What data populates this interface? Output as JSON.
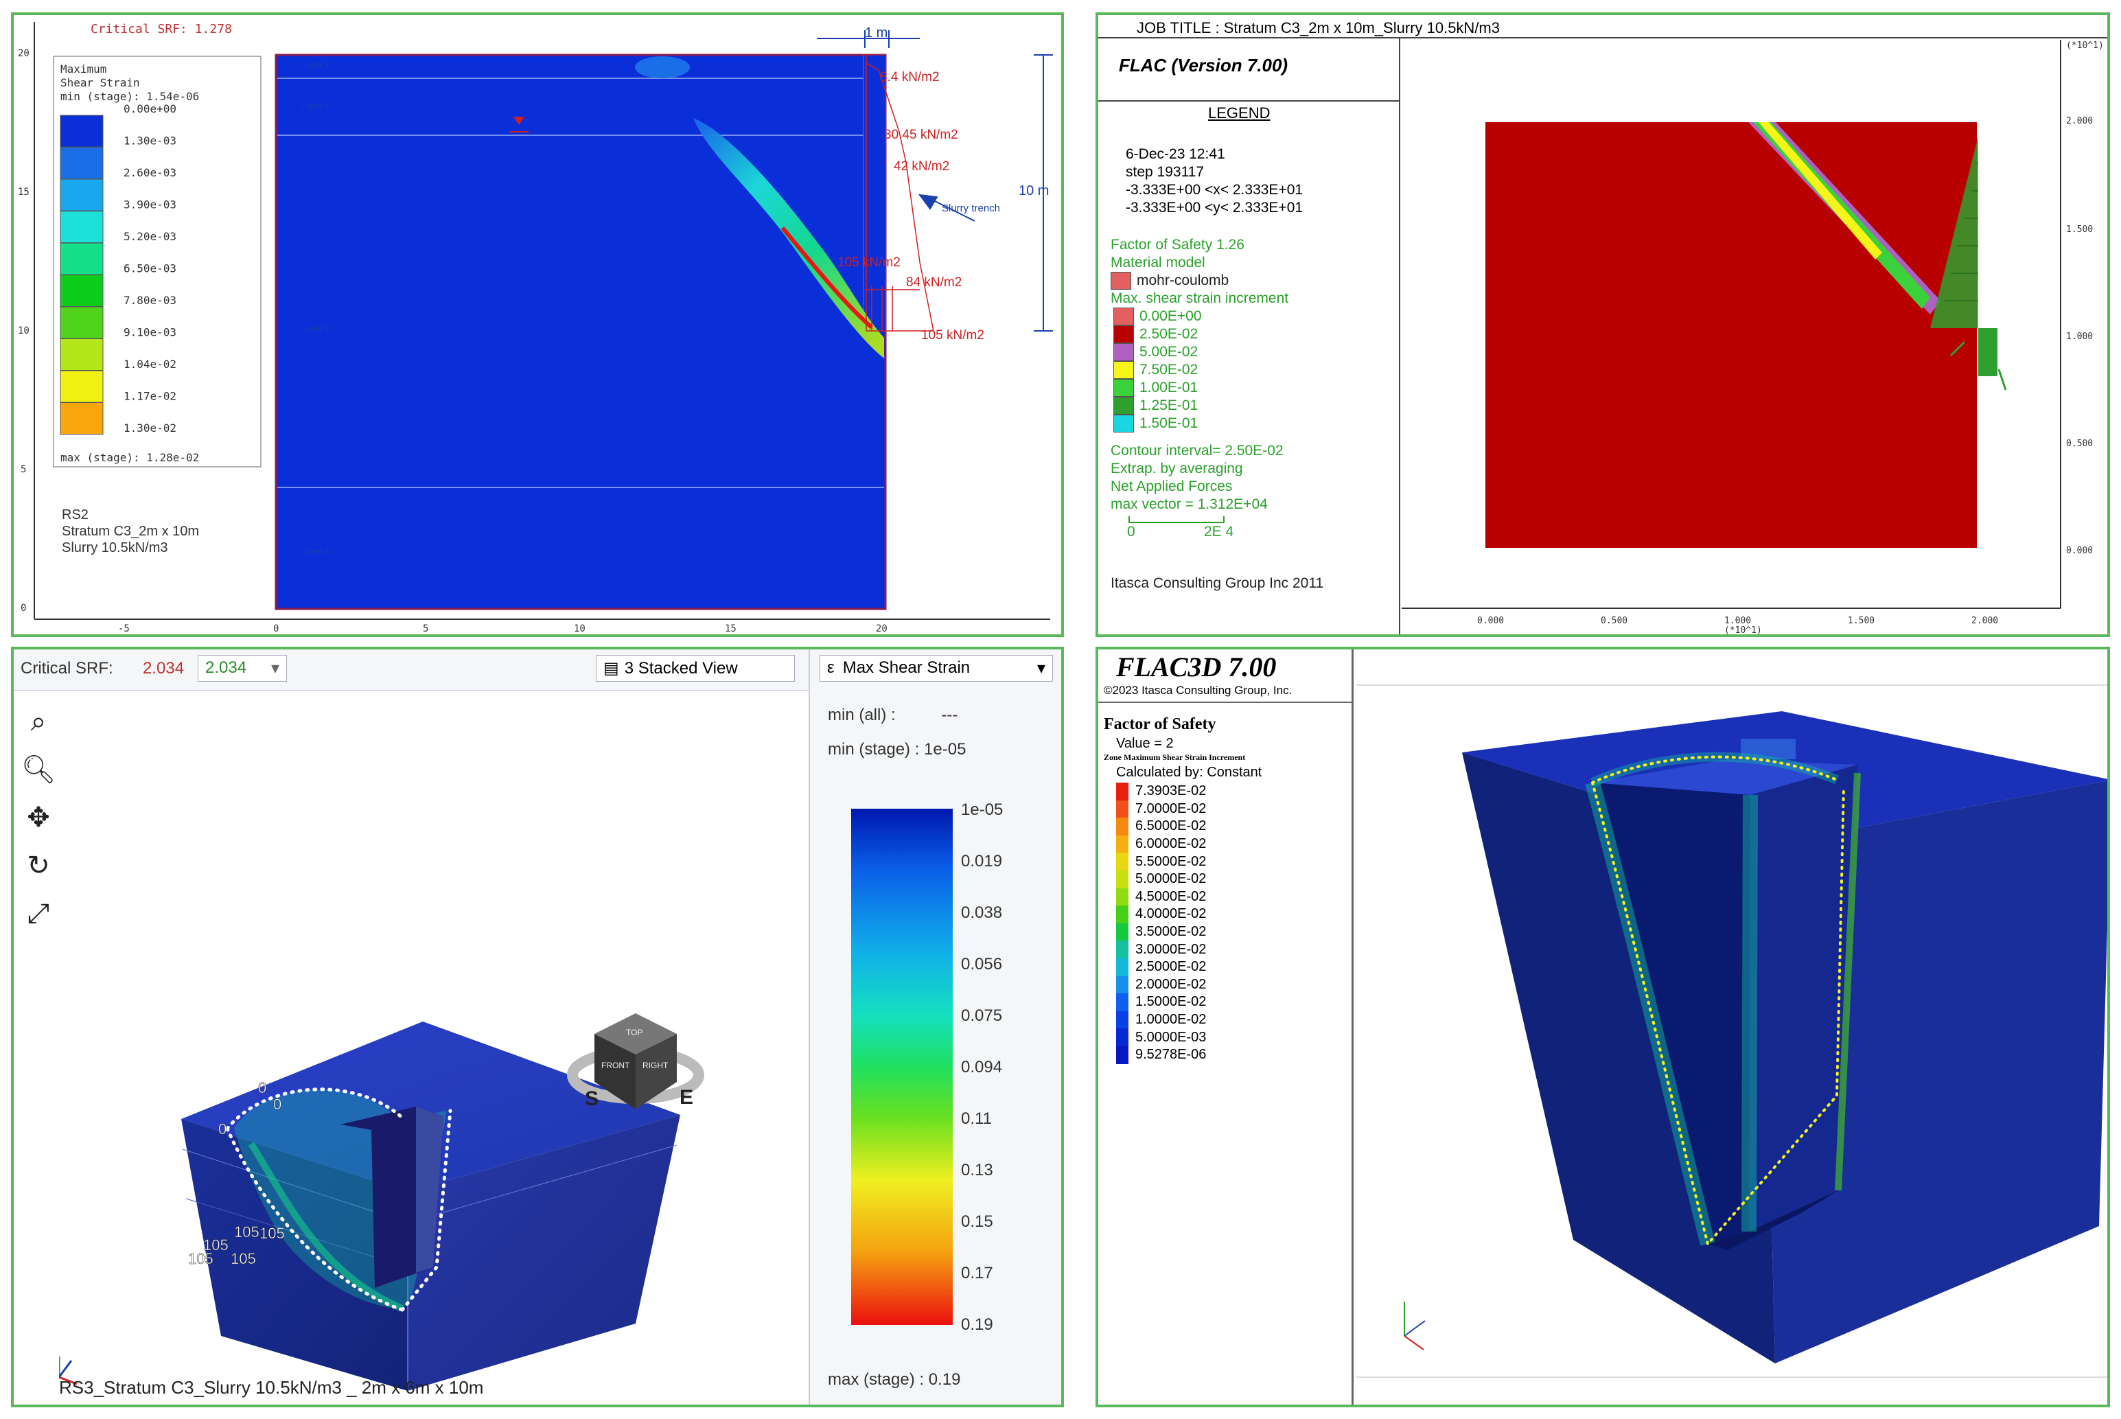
{
  "p1": {
    "critical_srf": "Critical SRF: 1.278",
    "legend_title": [
      "Maximum",
      "Shear Strain",
      "min (stage): 1.54e-06"
    ],
    "legend_values": [
      "0.00e+00",
      "1.30e-03",
      "2.60e-03",
      "3.90e-03",
      "5.20e-03",
      "6.50e-03",
      "7.80e-03",
      "9.10e-03",
      "1.04e-02",
      "1.17e-02",
      "1.30e-02"
    ],
    "legend_max": "max (stage): 1.28e-02",
    "legend_colors": [
      "#0a2fd9",
      "#1a6ee8",
      "#19a8ee",
      "#1de0d8",
      "#14e08a",
      "#0ccd1c",
      "#4fd41b",
      "#b4e61a",
      "#f2f212",
      "#f9a70c",
      "#ea1515"
    ],
    "info": [
      "RS2",
      "Stratum C3_2m x 10m",
      "Slurry 10.5kN/m3"
    ],
    "y_ticks": [
      "20",
      "15",
      "10",
      "5",
      "0"
    ],
    "x_ticks": [
      "-5",
      "0",
      "5",
      "10",
      "15",
      "20"
    ],
    "layer_labels": [
      "Layer 1",
      "Layer 2",
      "Layer 3",
      "Layer 4"
    ],
    "dim_top": "1 m",
    "dim_side": "10 m",
    "loads": [
      "8.4 kN/m2",
      "30.45 kN/m2",
      "42 kN/m2",
      "105 kN/m2",
      "84 kN/m2",
      "105 kN/m2"
    ],
    "slurry_label": "Slurry trench"
  },
  "p2": {
    "job_title": "JOB TITLE : Stratum C3_2m x 10m_Slurry 10.5kN/m3",
    "program": "FLAC (Version 7.00)",
    "legend": "LEGEND",
    "date": "6-Dec-23 12:41",
    "step": "step  193117",
    "xrange": "-3.333E+00 <x< 2.333E+01",
    "yrange": "-3.333E+00 <y< 2.333E+01",
    "fos": "Factor of Safety  1.26",
    "material_model": "Material model",
    "mohr": "mohr-coulomb",
    "shear_title": "Max. shear strain increment",
    "shear_values": [
      "0.00E+00",
      "2.50E-02",
      "5.00E-02",
      "7.50E-02",
      "1.00E-01",
      "1.25E-01",
      "1.50E-01"
    ],
    "shear_colors": [
      "#e36060",
      "#b80000",
      "#b060c0",
      "#f5f51a",
      "#3ad13a",
      "#2fa02f",
      "#19d6e0"
    ],
    "contour": "Contour interval= 2.50E-02",
    "extrap": "Extrap. by averaging",
    "net_forces": "Net Applied Forces",
    "max_vector": "max vector =    1.312E+04",
    "scale_0": "0",
    "scale_2e4": "2E  4",
    "itasca": "Itasca Consulting Group Inc 2011",
    "axis_exp": "(*10^1)",
    "y_ticks": [
      "2.000",
      "1.500",
      "1.000",
      "0.500",
      "0.000"
    ],
    "x_ticks": [
      "0.000",
      "0.500",
      "1.000",
      "1.500",
      "2.000"
    ],
    "model_color": "#b80000"
  },
  "p3": {
    "critical_srf_label": "Critical SRF:",
    "critical_srf_value": "2.034",
    "srf_dropdown": "2.034",
    "view_mode": "3 Stacked View",
    "contour_select": "Max Shear Strain",
    "min_all": "min (all) :",
    "min_all_val": "---",
    "min_stage": "min (stage) : 1e-05",
    "max_stage": "max (stage) : 0.19",
    "scale_labels": [
      "1e-05",
      "0.019",
      "0.038",
      "0.056",
      "0.075",
      "0.094",
      "0.11",
      "0.13",
      "0.15",
      "0.17",
      "0.19"
    ],
    "bottom_caption": "RS3_Stratum C3_Slurry 10.5kN/m3 _ 2m x 6m x 10m",
    "cube_top": "TOP",
    "cube_front": "FRONT",
    "cube_right": "RIGHT",
    "compass_s": "S",
    "compass_e": "E",
    "load_zero": "0",
    "load_105": "105"
  },
  "p4": {
    "title": "FLAC3D 7.00",
    "copyright": "©2023 Itasca Consulting Group, Inc.",
    "fos_title": "Factor of Safety",
    "fos_value": "Value = 2",
    "zone_title": "Zone Maximum Shear Strain Increment",
    "calc": "Calculated by: Constant",
    "values": [
      "7.3903E-02",
      "7.0000E-02",
      "6.5000E-02",
      "6.0000E-02",
      "5.5000E-02",
      "5.0000E-02",
      "4.5000E-02",
      "4.0000E-02",
      "3.5000E-02",
      "3.0000E-02",
      "2.5000E-02",
      "2.0000E-02",
      "1.5000E-02",
      "1.0000E-02",
      "5.0000E-03",
      "9.5278E-06"
    ],
    "colors": [
      "#e82010",
      "#f0501a",
      "#f58a10",
      "#f5b010",
      "#e8d812",
      "#c8e010",
      "#90dc10",
      "#48d018",
      "#16c840",
      "#14c0a0",
      "#14b8d8",
      "#1890ea",
      "#1060f0",
      "#0a40e8",
      "#0828d8",
      "#0818c0"
    ]
  }
}
